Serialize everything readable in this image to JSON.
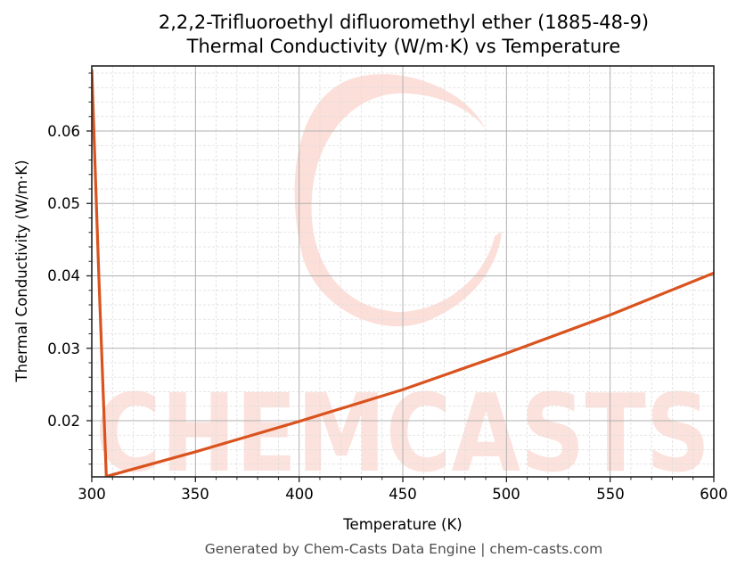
{
  "title": {
    "line1": "2,2,2-Trifluoroethyl difluoromethyl ether (1885-48-9)",
    "line2": "Thermal Conductivity (W/m·K) vs Temperature"
  },
  "axes": {
    "xlabel": "Temperature (K)",
    "ylabel": "Thermal Conductivity (W/m·K)",
    "xticks": [
      "300",
      "350",
      "400",
      "450",
      "500",
      "550",
      "600"
    ],
    "yticks": [
      "0.02",
      "0.03",
      "0.04",
      "0.05",
      "0.06"
    ]
  },
  "watermark": {
    "text": "CHEMCASTS",
    "color": "#fcd9d2"
  },
  "footer": {
    "text": "Generated by Chem-Casts Data Engine | chem-casts.com"
  },
  "colors": {
    "line": "#d9531e",
    "grid_major": "#b0b0b0",
    "grid_minor": "#dddddd",
    "axes": "#222222"
  },
  "chart_data": {
    "type": "line",
    "title": "2,2,2-Trifluoroethyl difluoromethyl ether (1885-48-9) Thermal Conductivity (W/m·K) vs Temperature",
    "xlabel": "Temperature (K)",
    "ylabel": "Thermal Conductivity (W/m·K)",
    "xlim": [
      300,
      600
    ],
    "ylim": [
      0.0122,
      0.0685
    ],
    "grid": true,
    "legend": null,
    "series": [
      {
        "name": "Thermal Conductivity",
        "x": [
          300,
          303.4,
          307,
          350,
          400,
          450,
          500,
          550,
          600
        ],
        "values": [
          0.0685,
          0.04,
          0.0123,
          0.0157,
          0.0199,
          0.0243,
          0.0293,
          0.0346,
          0.0404
        ]
      }
    ]
  }
}
